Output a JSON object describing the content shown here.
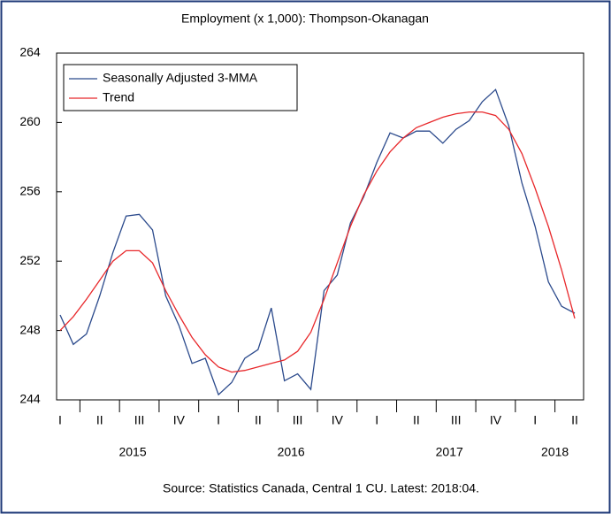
{
  "chart_data": {
    "type": "line",
    "title": "Employment (x 1,000): Thompson-Okanagan",
    "source": "Source:  Statistics Canada, Central 1 CU. Latest: 2018:04.",
    "categories": [
      "I",
      null,
      null,
      "II",
      null,
      null,
      "III",
      null,
      null,
      "IV",
      null,
      null,
      "I",
      null,
      null,
      "II",
      null,
      null,
      "III",
      null,
      null,
      "IV",
      null,
      null,
      "I",
      null,
      null,
      "II",
      null,
      null,
      "III",
      null,
      null,
      "IV",
      null,
      null,
      "I",
      null,
      null,
      "II"
    ],
    "years": [
      "2015",
      "2016",
      "2017",
      "2018"
    ],
    "series": [
      {
        "name": "Seasonally Adjusted 3-MMA",
        "color": "#2b4a8c",
        "values": [
          248.9,
          247.2,
          247.8,
          250.0,
          252.5,
          254.6,
          254.7,
          253.8,
          250.0,
          248.3,
          246.1,
          246.4,
          244.3,
          245.0,
          246.4,
          246.9,
          249.3,
          245.1,
          245.5,
          244.6,
          250.3,
          251.2,
          254.2,
          255.7,
          257.7,
          259.4,
          259.1,
          259.5,
          259.5,
          258.8,
          259.6,
          260.1,
          261.2,
          261.9,
          259.8,
          256.5,
          254.0,
          250.8,
          249.4,
          249.0
        ]
      },
      {
        "name": "Trend",
        "color": "#e8282b",
        "values": [
          248.0,
          248.8,
          249.8,
          250.9,
          252.0,
          252.6,
          252.6,
          251.9,
          250.3,
          248.9,
          247.6,
          246.6,
          245.9,
          245.6,
          245.7,
          245.9,
          246.1,
          246.3,
          246.8,
          247.9,
          249.8,
          251.9,
          254.0,
          255.8,
          257.2,
          258.3,
          259.1,
          259.7,
          260.0,
          260.3,
          260.5,
          260.6,
          260.6,
          260.4,
          259.6,
          258.2,
          256.2,
          254.0,
          251.5,
          248.7
        ]
      }
    ],
    "ylim": [
      244,
      264
    ],
    "yticks": [
      244,
      248,
      252,
      256,
      260,
      264
    ],
    "legend": "upper left"
  }
}
